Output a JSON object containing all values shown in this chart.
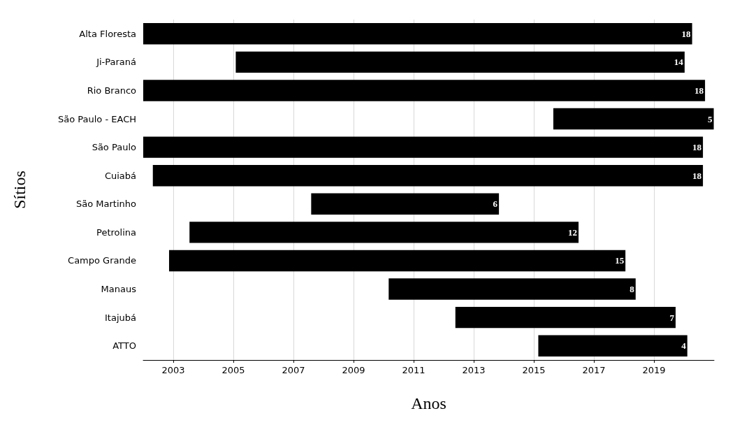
{
  "chart_data": {
    "type": "bar",
    "orientation": "horizontal",
    "xlabel": "Anos",
    "ylabel": "Sítios",
    "categories": [
      "Alta Floresta",
      "Ji-Paraná",
      "Rio Branco",
      "São Paulo - EACH",
      "São Paulo",
      "Cuiabá",
      "São Martinho",
      "Petrolina",
      "Campo Grande",
      "Manaus",
      "Itajubá",
      "ATTO"
    ],
    "base": [
      2002.0,
      2005.08,
      2002.0,
      2015.65,
      2002.0,
      2002.32,
      2007.59,
      2003.54,
      2002.86,
      2010.17,
      2012.39,
      2015.15
    ],
    "values": [
      18.27,
      14.94,
      18.7,
      5.34,
      18.63,
      18.31,
      6.25,
      12.95,
      15.19,
      8.22,
      7.33,
      4.96
    ],
    "annotations": [
      {
        "text": "18",
        "x": 2020.27,
        "y": "Alta Floresta"
      },
      {
        "text": "14",
        "x": 2020.02,
        "y": "Ji-Paraná"
      },
      {
        "text": "18",
        "x": 2020.7,
        "y": "Rio Branco"
      },
      {
        "text": "5",
        "x": 2020.99,
        "y": "São Paulo - EACH"
      },
      {
        "text": "18",
        "x": 2020.63,
        "y": "São Paulo"
      },
      {
        "text": "18",
        "x": 2020.63,
        "y": "Cuiabá"
      },
      {
        "text": "6",
        "x": 2013.84,
        "y": "São Martinho"
      },
      {
        "text": "12",
        "x": 2016.49,
        "y": "Petrolina"
      },
      {
        "text": "15",
        "x": 2018.05,
        "y": "Campo Grande"
      },
      {
        "text": "8",
        "x": 2018.39,
        "y": "Manaus"
      },
      {
        "text": "7",
        "x": 2019.72,
        "y": "Itajubá"
      },
      {
        "text": "4",
        "x": 2020.11,
        "y": "ATTO"
      }
    ],
    "color": "#000000",
    "xlim": [
      2002,
      2021
    ],
    "xticks": [
      2003,
      2005,
      2007,
      2009,
      2011,
      2013,
      2015,
      2017,
      2019
    ],
    "grid": "x"
  }
}
